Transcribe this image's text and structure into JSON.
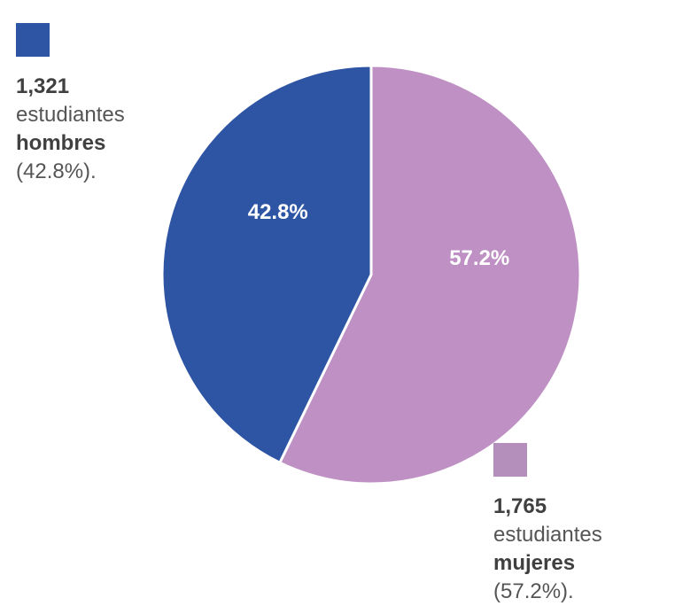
{
  "chart_data": {
    "type": "pie",
    "categories": [
      "hombres",
      "mujeres"
    ],
    "values": [
      42.8,
      57.2
    ],
    "counts": [
      1321,
      1765
    ],
    "colors": [
      "#2e54a4",
      "#be90c3"
    ],
    "data_labels": [
      "42.8%",
      "57.2%"
    ],
    "legend": [
      {
        "count": "1,321",
        "desc": "estudiantes",
        "group": "hombres",
        "pct": "(42.8%).",
        "color": "#2e54a4"
      },
      {
        "count": "1,765",
        "desc": "estudiantes",
        "group": "mujeres",
        "pct": "(57.2%).",
        "color": "#b48fbb"
      }
    ],
    "start_angle_deg": 0,
    "direction": "clockwise",
    "order": [
      "mujeres",
      "hombres"
    ]
  }
}
